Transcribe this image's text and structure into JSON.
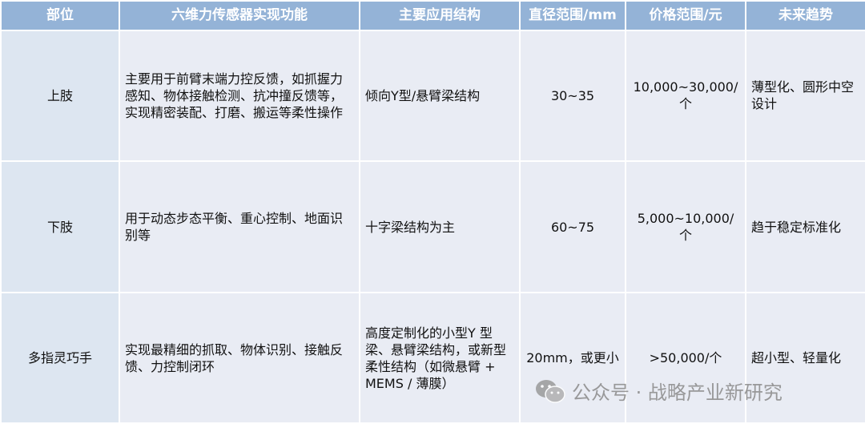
{
  "headers": [
    "部位",
    "六维力传感器实现功能",
    "主要应用结构",
    "直径范围/mm",
    "价格范围/元",
    "未来趋势"
  ],
  "rows": [
    [
      "上肢",
      "主要用于前臂末端力控反馈，如抓握力感知、物体接触检测、抗冲撞反馈等，实现精密装配、打磨、搬运等柔性操作",
      "倾向Y型/悬臂梁结构",
      "30~35",
      "10,000~30,000/个",
      "薄型化、圆形中空设计"
    ],
    [
      "下肢",
      "用于动态步态平衡、重心控制、地面识别等",
      "十字梁结构为主",
      "60~75",
      "5,000~10,000/个",
      "趋于稳定标准化"
    ],
    [
      "多指灵巧手",
      "实现最精细的抓取、物体识别、接触反馈、力控制闭环",
      "高度定制化的小型Y 型梁、悬臂梁结构，或新型柔性结构（如微悬臂 + MEMS / 薄膜）",
      "20mm，或更小",
      ">50,000/个",
      "超小型、轻量化"
    ]
  ],
  "watermark": {
    "icon": "wechat-icon",
    "text": "公众号 · 战略产业新研究"
  },
  "colors": {
    "header": "#94b3d7",
    "first_col": "#dde6f1",
    "cell": "#e9ecf4"
  }
}
